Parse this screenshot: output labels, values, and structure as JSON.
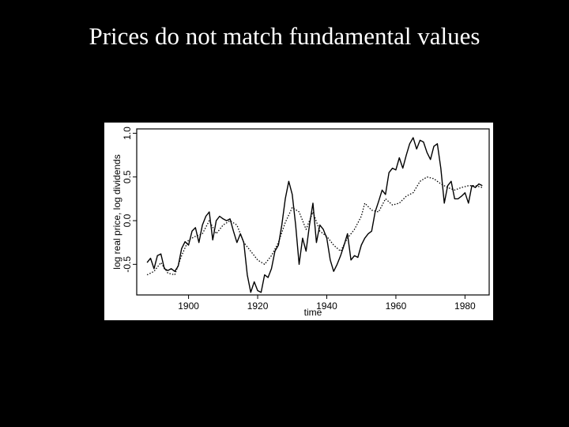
{
  "slide": {
    "title": "Prices do not match fundamental values"
  },
  "chart_data": {
    "type": "line",
    "xlabel": "time",
    "ylabel": "log real price, log dividends",
    "xlim": [
      1885,
      1987
    ],
    "ylim": [
      -0.85,
      1.05
    ],
    "xticks": [
      1900,
      1920,
      1940,
      1960,
      1980
    ],
    "yticks": [
      -0.5,
      0.0,
      0.5,
      1.0
    ],
    "grid": false,
    "series": [
      {
        "style": "solid",
        "points": [
          [
            1888,
            -0.48
          ],
          [
            1889,
            -0.43
          ],
          [
            1890,
            -0.55
          ],
          [
            1891,
            -0.4
          ],
          [
            1892,
            -0.38
          ],
          [
            1893,
            -0.55
          ],
          [
            1894,
            -0.57
          ],
          [
            1895,
            -0.55
          ],
          [
            1896,
            -0.58
          ],
          [
            1897,
            -0.52
          ],
          [
            1898,
            -0.32
          ],
          [
            1899,
            -0.24
          ],
          [
            1900,
            -0.28
          ],
          [
            1901,
            -0.12
          ],
          [
            1902,
            -0.08
          ],
          [
            1903,
            -0.25
          ],
          [
            1904,
            -0.05
          ],
          [
            1905,
            0.05
          ],
          [
            1906,
            0.1
          ],
          [
            1907,
            -0.22
          ],
          [
            1908,
            0.0
          ],
          [
            1909,
            0.05
          ],
          [
            1910,
            0.02
          ],
          [
            1911,
            0.0
          ],
          [
            1912,
            0.02
          ],
          [
            1913,
            -0.12
          ],
          [
            1914,
            -0.25
          ],
          [
            1915,
            -0.15
          ],
          [
            1916,
            -0.25
          ],
          [
            1917,
            -0.62
          ],
          [
            1918,
            -0.82
          ],
          [
            1919,
            -0.7
          ],
          [
            1920,
            -0.8
          ],
          [
            1921,
            -0.82
          ],
          [
            1922,
            -0.62
          ],
          [
            1923,
            -0.65
          ],
          [
            1924,
            -0.55
          ],
          [
            1925,
            -0.35
          ],
          [
            1926,
            -0.28
          ],
          [
            1927,
            -0.05
          ],
          [
            1928,
            0.25
          ],
          [
            1929,
            0.45
          ],
          [
            1930,
            0.3
          ],
          [
            1931,
            -0.05
          ],
          [
            1932,
            -0.5
          ],
          [
            1933,
            -0.2
          ],
          [
            1934,
            -0.35
          ],
          [
            1935,
            -0.05
          ],
          [
            1936,
            0.2
          ],
          [
            1937,
            -0.25
          ],
          [
            1938,
            -0.05
          ],
          [
            1939,
            -0.1
          ],
          [
            1940,
            -0.2
          ],
          [
            1941,
            -0.45
          ],
          [
            1942,
            -0.58
          ],
          [
            1943,
            -0.5
          ],
          [
            1944,
            -0.4
          ],
          [
            1945,
            -0.28
          ],
          [
            1946,
            -0.15
          ],
          [
            1947,
            -0.45
          ],
          [
            1948,
            -0.4
          ],
          [
            1949,
            -0.42
          ],
          [
            1950,
            -0.28
          ],
          [
            1951,
            -0.2
          ],
          [
            1952,
            -0.15
          ],
          [
            1953,
            -0.12
          ],
          [
            1954,
            0.1
          ],
          [
            1955,
            0.22
          ],
          [
            1956,
            0.35
          ],
          [
            1957,
            0.3
          ],
          [
            1958,
            0.55
          ],
          [
            1959,
            0.6
          ],
          [
            1960,
            0.58
          ],
          [
            1961,
            0.72
          ],
          [
            1962,
            0.6
          ],
          [
            1963,
            0.75
          ],
          [
            1964,
            0.88
          ],
          [
            1965,
            0.95
          ],
          [
            1966,
            0.82
          ],
          [
            1967,
            0.92
          ],
          [
            1968,
            0.9
          ],
          [
            1969,
            0.78
          ],
          [
            1970,
            0.7
          ],
          [
            1971,
            0.85
          ],
          [
            1972,
            0.88
          ],
          [
            1973,
            0.6
          ],
          [
            1974,
            0.2
          ],
          [
            1975,
            0.4
          ],
          [
            1976,
            0.45
          ],
          [
            1977,
            0.25
          ],
          [
            1978,
            0.25
          ],
          [
            1979,
            0.28
          ],
          [
            1980,
            0.32
          ],
          [
            1981,
            0.2
          ],
          [
            1982,
            0.4
          ],
          [
            1983,
            0.38
          ],
          [
            1984,
            0.42
          ],
          [
            1985,
            0.4
          ]
        ]
      },
      {
        "style": "dotted",
        "points": [
          [
            1888,
            -0.62
          ],
          [
            1890,
            -0.58
          ],
          [
            1892,
            -0.48
          ],
          [
            1894,
            -0.6
          ],
          [
            1896,
            -0.62
          ],
          [
            1898,
            -0.4
          ],
          [
            1900,
            -0.22
          ],
          [
            1902,
            -0.18
          ],
          [
            1904,
            -0.15
          ],
          [
            1906,
            0.0
          ],
          [
            1908,
            -0.15
          ],
          [
            1910,
            -0.05
          ],
          [
            1912,
            0.0
          ],
          [
            1914,
            -0.05
          ],
          [
            1916,
            -0.25
          ],
          [
            1918,
            -0.35
          ],
          [
            1920,
            -0.45
          ],
          [
            1922,
            -0.5
          ],
          [
            1924,
            -0.4
          ],
          [
            1926,
            -0.25
          ],
          [
            1928,
            -0.02
          ],
          [
            1930,
            0.15
          ],
          [
            1932,
            0.1
          ],
          [
            1934,
            -0.1
          ],
          [
            1936,
            0.1
          ],
          [
            1938,
            -0.12
          ],
          [
            1940,
            -0.18
          ],
          [
            1942,
            -0.28
          ],
          [
            1944,
            -0.35
          ],
          [
            1946,
            -0.2
          ],
          [
            1948,
            -0.1
          ],
          [
            1950,
            0.05
          ],
          [
            1951,
            0.2
          ],
          [
            1953,
            0.12
          ],
          [
            1955,
            0.1
          ],
          [
            1957,
            0.25
          ],
          [
            1959,
            0.18
          ],
          [
            1961,
            0.2
          ],
          [
            1963,
            0.28
          ],
          [
            1965,
            0.32
          ],
          [
            1967,
            0.45
          ],
          [
            1969,
            0.5
          ],
          [
            1971,
            0.48
          ],
          [
            1973,
            0.42
          ],
          [
            1975,
            0.38
          ],
          [
            1977,
            0.35
          ],
          [
            1979,
            0.38
          ],
          [
            1981,
            0.4
          ],
          [
            1983,
            0.4
          ],
          [
            1985,
            0.38
          ]
        ]
      }
    ]
  }
}
